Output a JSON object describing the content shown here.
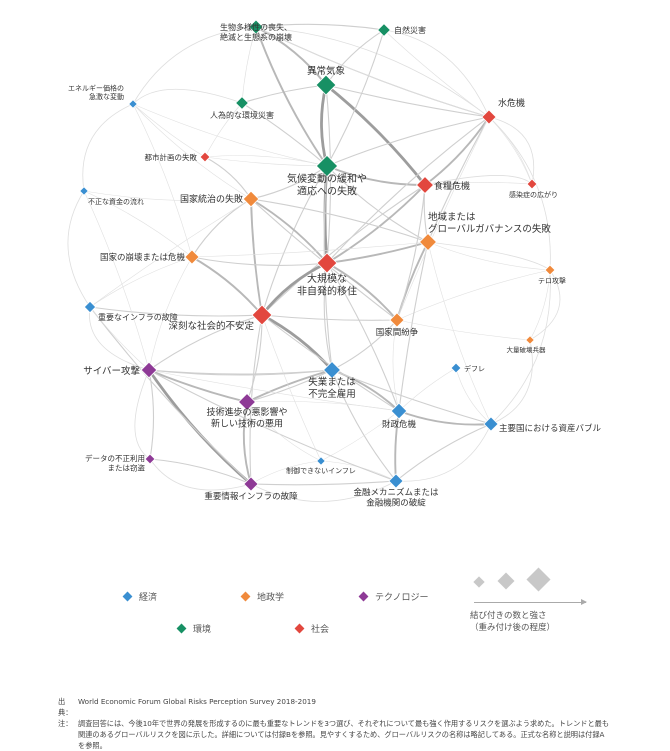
{
  "categories": [
    {
      "key": "econ",
      "label": "経済",
      "color": "#3a8fd1"
    },
    {
      "key": "geo",
      "label": "地政学",
      "color": "#f08a3c"
    },
    {
      "key": "tech",
      "label": "テクノロジー",
      "color": "#8e3a96"
    },
    {
      "key": "env",
      "label": "環境",
      "color": "#179064"
    },
    {
      "key": "soc",
      "label": "社会",
      "color": "#e2473e"
    }
  ],
  "nodes": [
    {
      "id": "bio",
      "lines": [
        "生物多様性の喪失、",
        "絶滅と生態系の崩壊"
      ],
      "cat": "env"
    },
    {
      "id": "nat",
      "lines": [
        "自然災害"
      ],
      "cat": "env"
    },
    {
      "id": "wea",
      "lines": [
        "異常気象"
      ],
      "cat": "env"
    },
    {
      "id": "man",
      "lines": [
        "人為的な環境災害"
      ],
      "cat": "env"
    },
    {
      "id": "cli",
      "lines": [
        "気候変動の緩和や",
        "適応への失敗"
      ],
      "cat": "env"
    },
    {
      "id": "wat",
      "lines": [
        "水危機"
      ],
      "cat": "soc"
    },
    {
      "id": "ene",
      "lines": [
        "エネルギー価格の",
        "急激な変動"
      ],
      "cat": "econ"
    },
    {
      "id": "urb",
      "lines": [
        "都市計画の失敗"
      ],
      "cat": "soc"
    },
    {
      "id": "fod",
      "lines": [
        "食糧危機"
      ],
      "cat": "soc"
    },
    {
      "id": "inf",
      "lines": [
        "感染症の広がり"
      ],
      "cat": "soc"
    },
    {
      "id": "ill",
      "lines": [
        "不正な資金の流れ"
      ],
      "cat": "econ"
    },
    {
      "id": "ngv",
      "lines": [
        "国家統治の失敗"
      ],
      "cat": "geo"
    },
    {
      "id": "rgv",
      "lines": [
        "地域または",
        "グローバルガバナンスの失敗"
      ],
      "cat": "geo"
    },
    {
      "id": "sta",
      "lines": [
        "国家の崩壊または危機"
      ],
      "cat": "geo"
    },
    {
      "id": "ter",
      "lines": [
        "テロ攻撃"
      ],
      "cat": "geo"
    },
    {
      "id": "mig",
      "lines": [
        "大規模な",
        "非自発的移住"
      ],
      "cat": "soc"
    },
    {
      "id": "cri",
      "lines": [
        "重要なインフラの故障"
      ],
      "cat": "econ"
    },
    {
      "id": "sip",
      "lines": [
        "深刻な社会的不安定"
      ],
      "cat": "soc"
    },
    {
      "id": "con",
      "lines": [
        "国家間紛争"
      ],
      "cat": "geo"
    },
    {
      "id": "wmd",
      "lines": [
        "大量破壊兵器"
      ],
      "cat": "geo"
    },
    {
      "id": "cyb",
      "lines": [
        "サイバー攻撃"
      ],
      "cat": "tech"
    },
    {
      "id": "def",
      "lines": [
        "デフレ"
      ],
      "cat": "econ"
    },
    {
      "id": "une",
      "lines": [
        "失業または",
        "不完全雇用"
      ],
      "cat": "econ"
    },
    {
      "id": "adv",
      "lines": [
        "技術進歩の悪影響や",
        "新しい技術の悪用"
      ],
      "cat": "tech"
    },
    {
      "id": "fis",
      "lines": [
        "財政危機"
      ],
      "cat": "econ"
    },
    {
      "id": "bub",
      "lines": [
        "主要国における資産バブル"
      ],
      "cat": "econ"
    },
    {
      "id": "dat",
      "lines": [
        "データの不正利用",
        "または窃盗"
      ],
      "cat": "tech"
    },
    {
      "id": "unm",
      "lines": [
        "制御できないインフレ"
      ],
      "cat": "econ"
    },
    {
      "id": "fin",
      "lines": [
        "金融メカニズムまたは",
        "金融機関の破綻"
      ],
      "cat": "econ"
    },
    {
      "id": "cit",
      "lines": [
        "重要情報インフラの故障"
      ],
      "cat": "tech"
    }
  ],
  "legend": {
    "strength_caption": [
      "結び付きの数と強さ",
      "（重み付け後の程度）"
    ]
  },
  "notes": {
    "source_key": "出典：",
    "source_text": "World Economic Forum Global Risks Perception Survey 2018-2019",
    "note_key": "注：",
    "note_lines": [
      "調査回答には、今後10年で世界の発展を形成するのに最も重要なトレンドを3つ選び、それぞれについて最も強く作用するリスクを選ぶよう求めた。トレンドと最も",
      "関連のあるグローバルリスクを図に示した。詳細については付録Bを参照。見やすくするため、グローバルリスクの名称は略記してある。正式な名称と説明は付録A",
      "を参照。"
    ]
  }
}
